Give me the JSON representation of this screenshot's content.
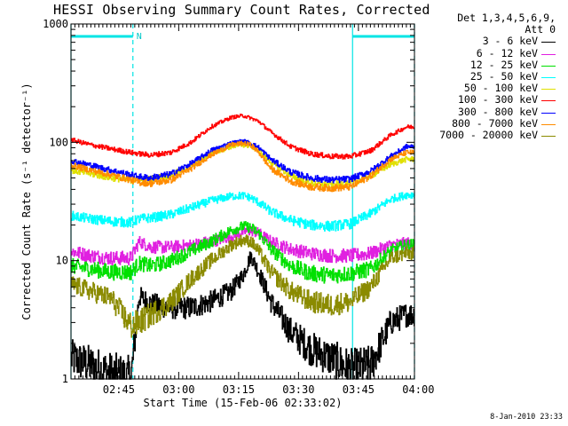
{
  "title": "HESSI Observing Summary Count Rates, Corrected",
  "legend": {
    "header_line1": "Det 1,3,4,5,6,9,",
    "header_line2": "Att 0",
    "entries": [
      {
        "label": "3 - 6 keV",
        "color": "#000000"
      },
      {
        "label": "6 - 12 keV",
        "color": "#e020e0"
      },
      {
        "label": "12 - 25 keV",
        "color": "#00e000"
      },
      {
        "label": "25 - 50 keV",
        "color": "#00ffff"
      },
      {
        "label": "50 - 100 keV",
        "color": "#e0e000"
      },
      {
        "label": "100 - 300 keV",
        "color": "#ff0000"
      },
      {
        "label": "300 - 800 keV",
        "color": "#0000ff"
      },
      {
        "label": "800 - 7000 keV",
        "color": "#ff8c00"
      },
      {
        "label": "7000 - 20000 keV",
        "color": "#8b8b00"
      }
    ]
  },
  "footer": "8-Jan-2010 23:33",
  "chart_data": {
    "type": "line",
    "title": "HESSI Observing Summary Count Rates, Corrected",
    "xlabel": "Start Time (15-Feb-06 02:33:02)",
    "ylabel": "Corrected Count Rate (s⁻¹ detector⁻¹)",
    "y_scale": "log",
    "ylim": [
      1,
      1000
    ],
    "xlim_minutes_after_start": [
      0,
      86
    ],
    "x_ticks": [
      {
        "label": "02:45",
        "t": 11.97
      },
      {
        "label": "03:00",
        "t": 26.97
      },
      {
        "label": "03:15",
        "t": 41.97
      },
      {
        "label": "03:30",
        "t": 56.97
      },
      {
        "label": "03:45",
        "t": 71.97
      },
      {
        "label": "04:00",
        "t": 86.97
      }
    ],
    "y_ticks": [
      {
        "label": "1",
        "value": 1
      },
      {
        "label": "10",
        "value": 10
      },
      {
        "label": "100",
        "value": 100
      },
      {
        "label": "1000",
        "value": 1000
      }
    ],
    "annotations": {
      "night_bar_label": "N",
      "night_intervals": [
        [
          0,
          15.5
        ],
        [
          70.5,
          86
        ]
      ],
      "vertical_lines_solid": [
        0,
        70.5
      ],
      "vertical_lines_dashed": [
        15.5,
        86
      ]
    },
    "x": [
      0,
      5,
      10,
      15,
      17,
      20,
      25,
      30,
      35,
      40,
      43,
      45,
      47,
      50,
      55,
      60,
      65,
      70,
      75,
      80,
      84
    ],
    "series": [
      {
        "name": "3 - 6 keV",
        "color": "#000000",
        "values": [
          1.5,
          1.3,
          1.1,
          1.0,
          5.0,
          4.3,
          4.0,
          4.0,
          4.5,
          5.5,
          7.5,
          11.0,
          8.0,
          4.5,
          2.5,
          1.8,
          1.5,
          1.2,
          1.3,
          3.0,
          3.5
        ]
      },
      {
        "name": "6 - 12 keV",
        "color": "#e020e0",
        "values": [
          12.0,
          11.0,
          10.5,
          10.5,
          14.5,
          13.0,
          13.0,
          13.5,
          14.5,
          16.0,
          17.5,
          18.0,
          17.0,
          14.5,
          12.5,
          11.5,
          11.0,
          11.0,
          11.5,
          13.5,
          14.0
        ]
      },
      {
        "name": "12 - 25 keV",
        "color": "#00e000",
        "values": [
          9.0,
          8.5,
          8.0,
          8.0,
          9.5,
          9.0,
          10.0,
          12.0,
          14.5,
          18.0,
          19.5,
          19.0,
          17.0,
          12.5,
          9.0,
          7.8,
          7.5,
          7.8,
          8.5,
          12.0,
          13.5
        ]
      },
      {
        "name": "25 - 50 keV",
        "color": "#00ffff",
        "values": [
          24.0,
          22.5,
          21.5,
          21.0,
          22.5,
          23.0,
          24.5,
          28.0,
          32.0,
          35.0,
          35.5,
          34.0,
          31.0,
          26.0,
          22.0,
          20.0,
          19.5,
          20.5,
          25.0,
          33.0,
          36.0
        ]
      },
      {
        "name": "50 - 100 keV",
        "color": "#e0e000",
        "values": [
          58.0,
          54.0,
          50.0,
          48.0,
          48.0,
          49.0,
          53.0,
          63.0,
          80.0,
          92.0,
          95.0,
          93.0,
          85.0,
          68.0,
          52.0,
          45.0,
          44.0,
          45.0,
          52.0,
          65.0,
          72.0
        ]
      },
      {
        "name": "100 - 300 keV",
        "color": "#ff0000",
        "values": [
          105.0,
          95.0,
          88.0,
          82.0,
          80.0,
          78.0,
          82.0,
          100.0,
          135.0,
          162.0,
          168.0,
          160.0,
          150.0,
          122.0,
          92.0,
          80.0,
          76.0,
          76.0,
          85.0,
          115.0,
          135.0
        ]
      },
      {
        "name": "300 - 800 keV",
        "color": "#0000ff",
        "values": [
          70.0,
          64.0,
          58.0,
          53.0,
          51.0,
          50.0,
          54.0,
          66.0,
          85.0,
          98.0,
          102.0,
          98.0,
          90.0,
          72.0,
          56.0,
          50.0,
          48.0,
          49.0,
          57.0,
          76.0,
          92.0
        ]
      },
      {
        "name": "800 - 7000 keV",
        "color": "#ff8c00",
        "values": [
          64.0,
          58.0,
          53.0,
          48.0,
          46.0,
          45.0,
          48.0,
          60.0,
          78.0,
          95.0,
          98.0,
          95.0,
          82.0,
          60.0,
          47.0,
          42.0,
          41.0,
          42.0,
          52.0,
          72.0,
          82.0
        ]
      },
      {
        "name": "7000 - 20000 keV",
        "color": "#8b8b00",
        "values": [
          6.3,
          5.5,
          4.8,
          2.8,
          3.0,
          3.5,
          4.5,
          7.0,
          10.0,
          13.5,
          15.0,
          14.5,
          12.0,
          8.0,
          5.5,
          4.5,
          4.2,
          4.5,
          6.0,
          10.5,
          11.5
        ]
      }
    ]
  }
}
